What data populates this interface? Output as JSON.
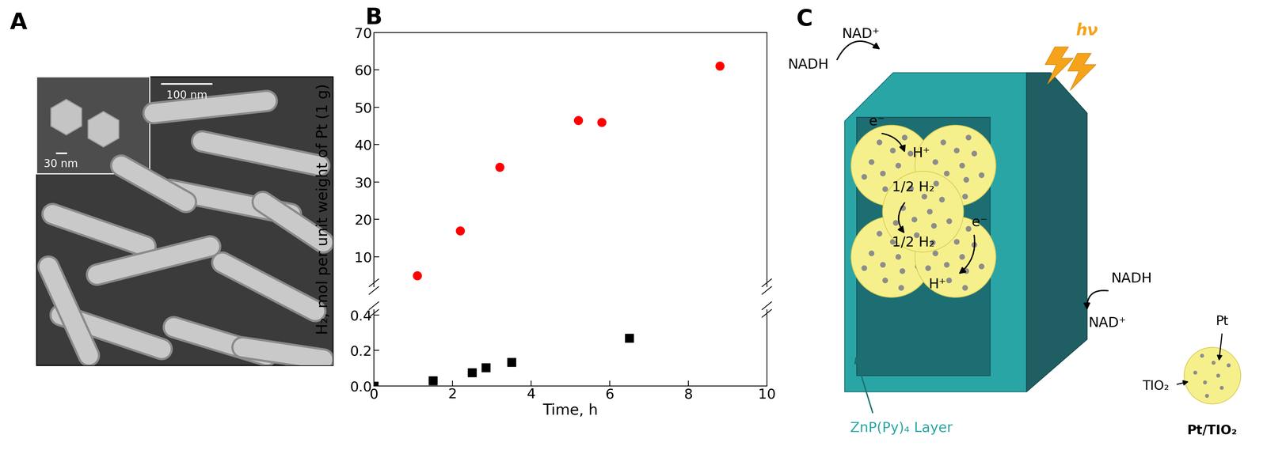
{
  "panel_labels": [
    "A",
    "B",
    "C"
  ],
  "image_panel": {
    "inset_scale_bar": "30 nm",
    "main_scale_bar": "100 nm"
  },
  "chart_data": [
    {
      "type": "scatter",
      "ylabel": "H₂, mol per unit weight of Pt (1 g)",
      "xlim": [
        0,
        10
      ],
      "xticks": [
        0,
        2,
        4,
        6,
        8,
        10
      ],
      "ylim": [
        2,
        70
      ],
      "yticks": [
        10,
        20,
        30,
        40,
        50,
        60,
        70
      ],
      "tick_labels": "y",
      "series": [
        {
          "color": "#ff0000",
          "marker": "circle",
          "x": [
            1.1,
            2.2,
            3.2,
            5.2,
            5.8,
            8.8
          ],
          "values": [
            5,
            17,
            34,
            46.5,
            46,
            61
          ]
        }
      ]
    },
    {
      "type": "scatter",
      "xlabel": "Time, h",
      "xlim": [
        0,
        10
      ],
      "xticks": [
        0,
        2,
        4,
        6,
        8,
        10
      ],
      "ylim": [
        0,
        0.43
      ],
      "yticks": [
        0.0,
        0.2,
        0.4
      ],
      "series": [
        {
          "color": "#000000",
          "marker": "square",
          "x": [
            0,
            1.5,
            2.5,
            2.85,
            3.5,
            6.5
          ],
          "values": [
            0,
            0.03,
            0.075,
            0.105,
            0.135,
            0.27
          ]
        }
      ]
    }
  ],
  "diagram": {
    "outside_top": {
      "substrate": "NADH",
      "product": "NAD⁺"
    },
    "outside_bottom": {
      "substrate": "NADH",
      "product": "NAD⁺"
    },
    "light": "hν",
    "electrons": [
      "e⁻",
      "e⁻"
    ],
    "protons": [
      "H⁺",
      "H⁺"
    ],
    "hydrogen": [
      "1/2 H₂",
      "1/2 H₂"
    ],
    "layer_label": "ZnP(Py)₄ Layer",
    "legend_sphere": {
      "metal": "Pt",
      "support": "TIO₂",
      "title": "Pt/TIO₂"
    }
  }
}
